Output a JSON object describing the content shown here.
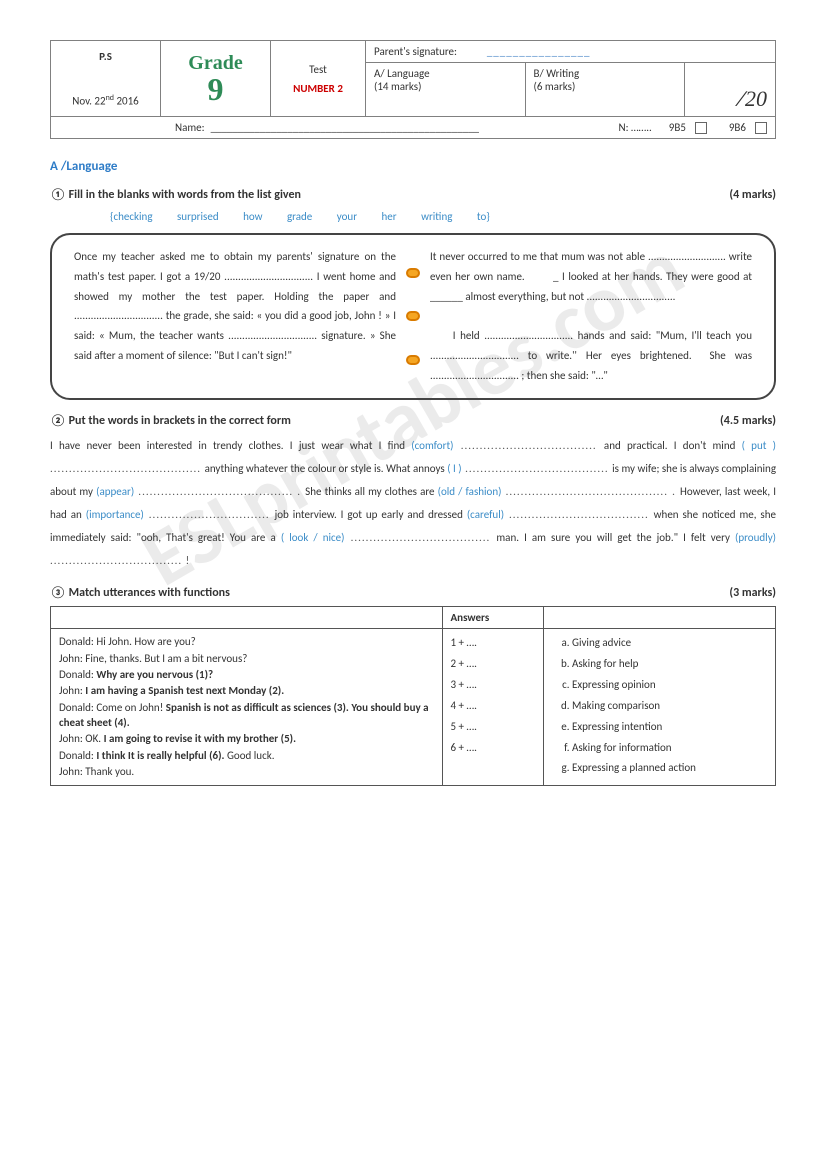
{
  "watermark": "ESLprintables.com",
  "header": {
    "ps": "P.S",
    "date_prefix": "Nov. 22",
    "date_sup": "nd",
    "date_year": "  2016",
    "grade_word": "Grade",
    "grade_num": "9",
    "test_label": "Test",
    "test_number": "NUMBER 2",
    "parent_sig_label": "Parent's signature:",
    "sig_dashes": "________________",
    "lang_label": "A/  Language",
    "lang_marks": "(14 marks)",
    "writing_label": "B/  Writing",
    "writing_marks": "(6 marks)",
    "score_total": "20",
    "name_label": "Name:",
    "name_dashes": "_________________________________________________",
    "n_label": "N: ……..",
    "class1": "9B5",
    "class2": "9B6"
  },
  "sectionA_title": "A /Language",
  "q1": {
    "num": "①",
    "text": "Fill in the blanks with words from the list given",
    "marks": "(4 marks)",
    "bank": "{checking        surprised     how        grade        your     her      writing        to}",
    "page_left": "Once my teacher asked me to obtain my parents' signature on the math's test paper. I got a 19/20 ................................ I went home and showed my mother the test paper. Holding the paper and ................................ the grade, she said: « you did a good job, John ! » I said: «  Mum, the teacher wants ................................ signature. » She said after a moment of silence: \"But I can't sign!\"",
    "page_right": "It never occurred to me that mum was not able ............................ write even her own name.        _ I looked at her hands. They were good at     ______ almost everything, but not ................................\n\n     I held ................................ hands and said: \"Mum, I'll teach you ................................ to write.'' Her eyes brightened.  She was ................................ ; then she said: \"…\""
  },
  "q2": {
    "num": "②",
    "text": "Put the words in brackets in the correct form",
    "marks": "(4.5 marks)",
    "segments": [
      {
        "t": "       I have never been interested in trendy clothes. I just wear what I find "
      },
      {
        "b": "(comfort)"
      },
      {
        "d": " .................................... "
      },
      {
        "t": "and practical. I don't mind "
      },
      {
        "b": "( put )"
      },
      {
        "d": " ........................................  "
      },
      {
        "t": "anything whatever the colour or style is. What annoys "
      },
      {
        "b": "( I )"
      },
      {
        "d": " ...................................... "
      },
      {
        "t": "is my wife; she is always complaining about my "
      },
      {
        "b": "(appear)"
      },
      {
        "d": " ......................................... . "
      },
      {
        "t": "She thinks all my clothes are "
      },
      {
        "b": "(old  /  fashion)"
      },
      {
        "d": " ........................................... .   "
      },
      {
        "t": "However, last week, I had an "
      },
      {
        "b": "(importance)"
      },
      {
        "d": " ................................ "
      },
      {
        "t": "job interview. I got up early and dressed "
      },
      {
        "b": "(careful)"
      },
      {
        "d": " ..................................... "
      },
      {
        "t": "when she noticed me, she immediately said: \"ooh, That's great! You are a "
      },
      {
        "b": "( look  /  nice)"
      },
      {
        "d": " ..................................... "
      },
      {
        "t": "man. I am sure you will get the job.\"  I felt very "
      },
      {
        "b": "(proudly)"
      },
      {
        "d": " ................................... !"
      }
    ]
  },
  "q3": {
    "num": "③",
    "text": "Match utterances with functions",
    "marks": "(3 marks)",
    "answers_header": "Answers",
    "dialog": [
      {
        "sp": "Donald:",
        "line": " Hi John. How are you?",
        "bold": false
      },
      {
        "sp": "John:",
        "line": " Fine, thanks. But I am a bit nervous?",
        "bold": false
      },
      {
        "sp": "Donald:",
        "line": " Why are you nervous (1)?",
        "bold": true
      },
      {
        "sp": "John:",
        "line": " I am having a Spanish test next Monday (2).",
        "bold": true
      },
      {
        "sp": "Donald:",
        "line": " Come on John! ",
        "bold": false,
        "tail_bold": "Spanish is not as difficult as sciences (3). You should buy a cheat sheet (4)."
      },
      {
        "sp": "John:",
        "line": " OK. ",
        "bold": false,
        "tail_bold": "I am going to revise it with my brother (5)."
      },
      {
        "sp": "Donald:",
        "line": " ",
        "bold": false,
        "tail_bold": "I think It is really helpful (6).",
        "after": " Good luck."
      },
      {
        "sp": "John:",
        "line": " Thank you.",
        "bold": false
      }
    ],
    "answers": [
      "1 + ….",
      "2 + ….",
      "3 + ….",
      "4 + ….",
      "5 + ….",
      "6 + …."
    ],
    "functions": [
      "Giving advice",
      "Asking for help",
      "Expressing opinion",
      "Making comparison",
      "Expressing intention",
      "Asking for information",
      "Expressing a planned action"
    ]
  }
}
